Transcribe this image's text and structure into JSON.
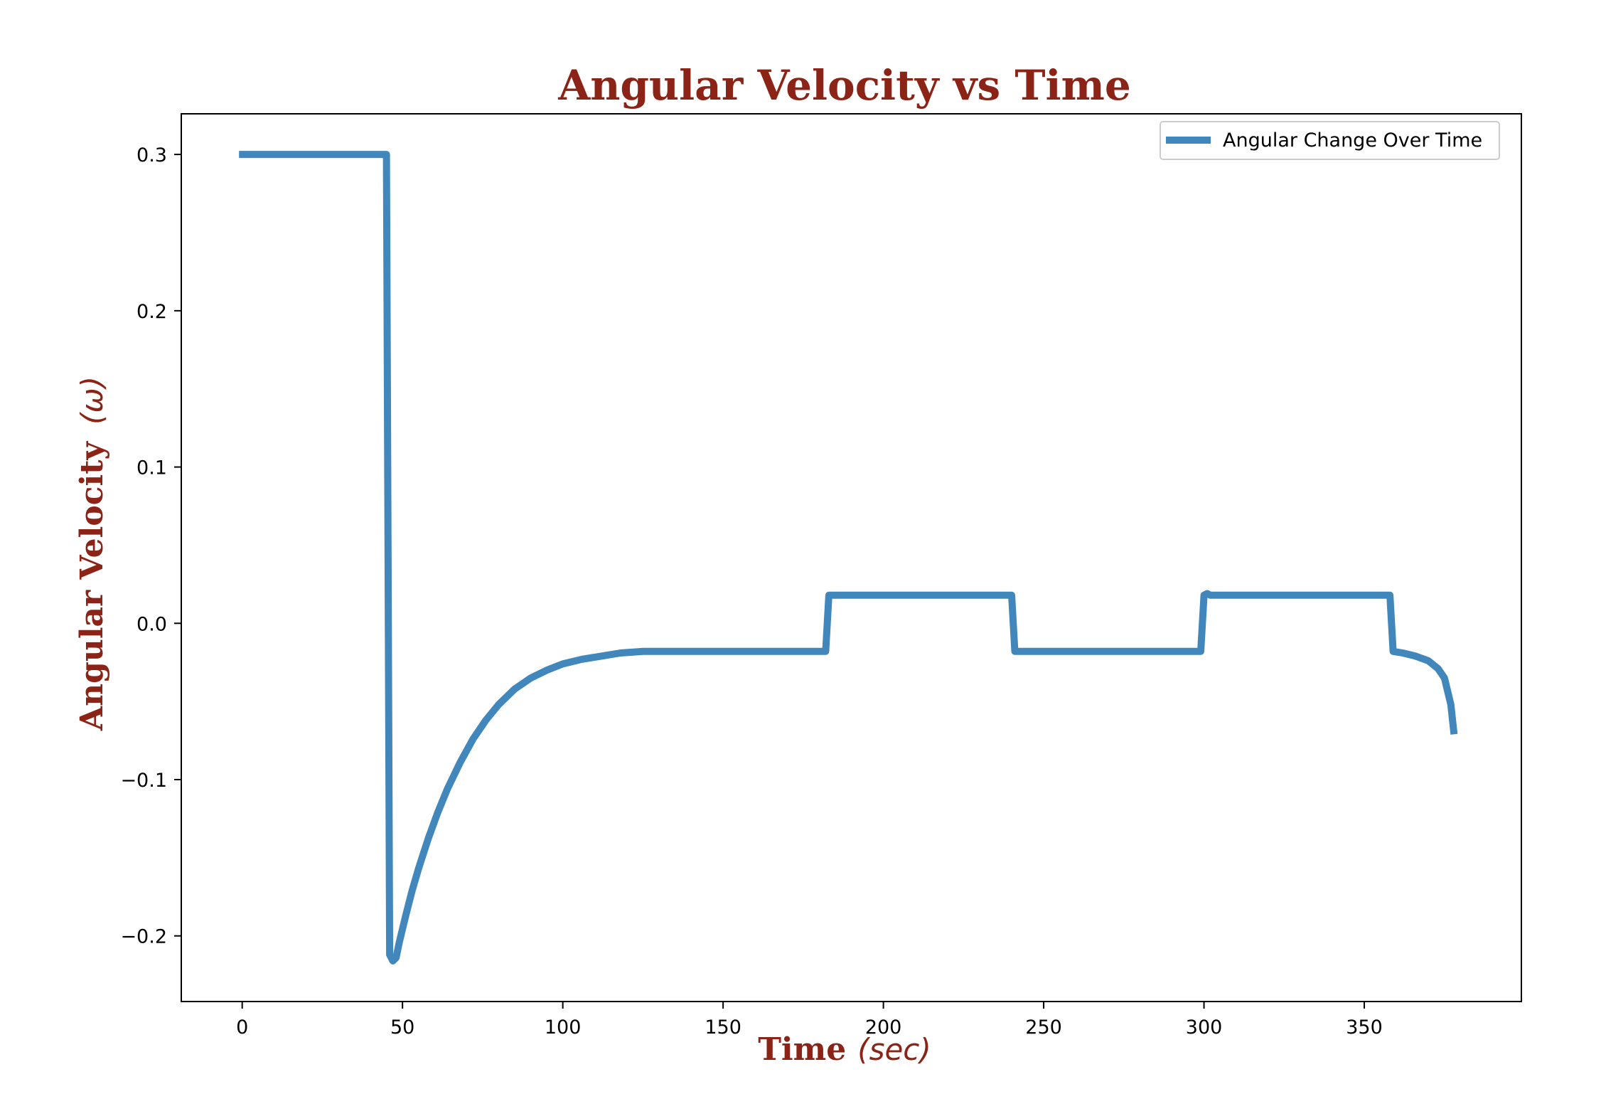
{
  "chart_data": {
    "type": "line",
    "title": "Angular Velocity vs Time",
    "xlabel": "Time",
    "xlabel_unit": "(sec)",
    "ylabel": "Angular Velocity",
    "ylabel_unit": "(ω)",
    "xlim": [
      -19,
      399
    ],
    "ylim": [
      -0.242,
      0.326
    ],
    "xticks": [
      0,
      50,
      100,
      150,
      200,
      250,
      300,
      350
    ],
    "xtick_labels": [
      "0",
      "50",
      "100",
      "150",
      "200",
      "250",
      "300",
      "350"
    ],
    "yticks": [
      -0.2,
      -0.1,
      0.0,
      0.1,
      0.2,
      0.3
    ],
    "ytick_labels": [
      "−0.2",
      "−0.1",
      "0.0",
      "0.1",
      "0.2",
      "0.3"
    ],
    "legend_position": "top-right",
    "grid": false,
    "colors": {
      "title": "#8b2316",
      "line": "#4287bc",
      "axis": "#000000"
    },
    "series": [
      {
        "name": "Angular Change Over Time",
        "x": [
          -1,
          45,
          46,
          47,
          48,
          49,
          51,
          53,
          55,
          58,
          61,
          64,
          68,
          72,
          76,
          80,
          85,
          90,
          95,
          100,
          106,
          112,
          118,
          125,
          150,
          182,
          183,
          200,
          220,
          240,
          241,
          260,
          280,
          299,
          300,
          301,
          302,
          320,
          340,
          358,
          359,
          362,
          366,
          370,
          373,
          375,
          377,
          378
        ],
        "y": [
          0.3,
          0.3,
          -0.212,
          -0.216,
          -0.214,
          -0.204,
          -0.187,
          -0.171,
          -0.157,
          -0.138,
          -0.121,
          -0.106,
          -0.089,
          -0.074,
          -0.062,
          -0.052,
          -0.042,
          -0.035,
          -0.03,
          -0.026,
          -0.023,
          -0.021,
          -0.019,
          -0.018,
          -0.018,
          -0.018,
          0.018,
          0.018,
          0.018,
          0.018,
          -0.018,
          -0.018,
          -0.018,
          -0.018,
          0.018,
          0.019,
          0.018,
          0.018,
          0.018,
          0.018,
          -0.018,
          -0.019,
          -0.021,
          -0.024,
          -0.029,
          -0.035,
          -0.052,
          -0.071
        ]
      }
    ]
  }
}
